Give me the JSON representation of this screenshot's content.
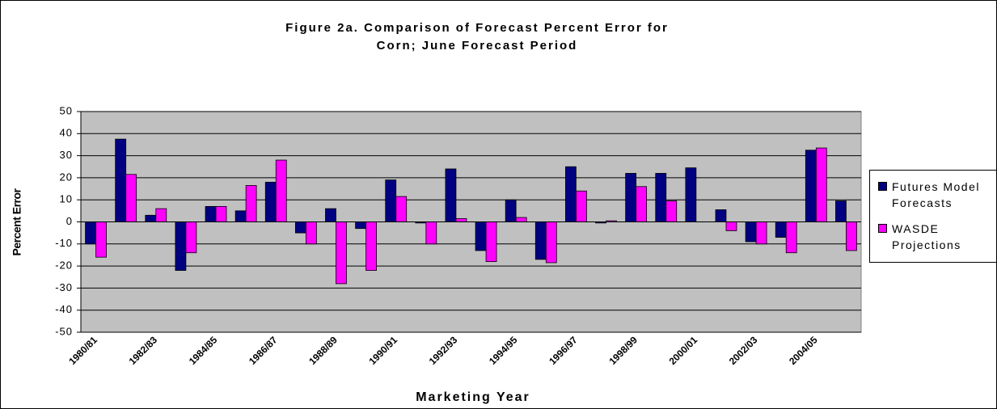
{
  "chart_data": {
    "type": "bar",
    "title": "Figure 2a.  Comparison of Forecast Percent Error for Corn;  June Forecast Period",
    "x_label": "Marketing Year",
    "y_label": "Percent Error",
    "categories": [
      "1980/81",
      null,
      "1982/83",
      null,
      "1984/85",
      null,
      "1986/87",
      null,
      "1988/89",
      null,
      "1990/91",
      null,
      "1992/93",
      null,
      "1994/95",
      null,
      "1996/97",
      null,
      "1998/99",
      null,
      "2000/01",
      null,
      "2002/03",
      null,
      "2004/05",
      null
    ],
    "series": [
      {
        "name": "Futures Model Forecasts",
        "color": "#000080",
        "values": [
          -10,
          37.5,
          3,
          -22,
          7,
          5,
          18,
          -5,
          6,
          -3,
          19,
          -0.5,
          24,
          -13,
          10,
          -17,
          25,
          -0.5,
          22,
          22,
          24.5,
          5.5,
          -9,
          -7,
          32.5,
          9.5
        ]
      },
      {
        "name": "WASDE Projections",
        "color": "#ff00ff",
        "values": [
          -16,
          21.5,
          6,
          -14,
          7,
          16.5,
          28,
          -10,
          -28,
          -22,
          11.5,
          -10,
          1.5,
          -18,
          2,
          -18.5,
          14,
          0.5,
          16,
          9.5,
          0,
          -4,
          -10,
          -14,
          33.5,
          -13
        ]
      }
    ],
    "ylim": [
      -50,
      50
    ],
    "yticks": [
      -50,
      -40,
      -30,
      -20,
      -10,
      0,
      10,
      20,
      30,
      40,
      50
    ],
    "grid": true,
    "legend": "right"
  }
}
